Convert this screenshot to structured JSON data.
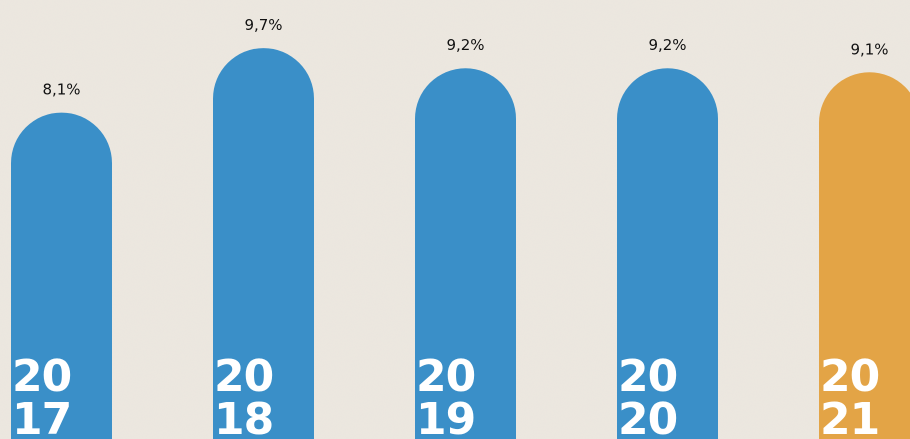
{
  "chart_data": {
    "type": "bar",
    "categories": [
      [
        "20",
        "17"
      ],
      [
        "20",
        "18"
      ],
      [
        "20",
        "19"
      ],
      [
        "20",
        "20"
      ],
      [
        "20",
        "21"
      ]
    ],
    "values": [
      8.1,
      9.7,
      9.2,
      9.2,
      9.1
    ],
    "value_labels": [
      "8,1%",
      "9,7%",
      "9,2%",
      "9,2%",
      "9,1%"
    ],
    "colors": [
      "#3a8fc8",
      "#3a8fc8",
      "#3a8fc8",
      "#3a8fc8",
      "#e3a446"
    ]
  }
}
